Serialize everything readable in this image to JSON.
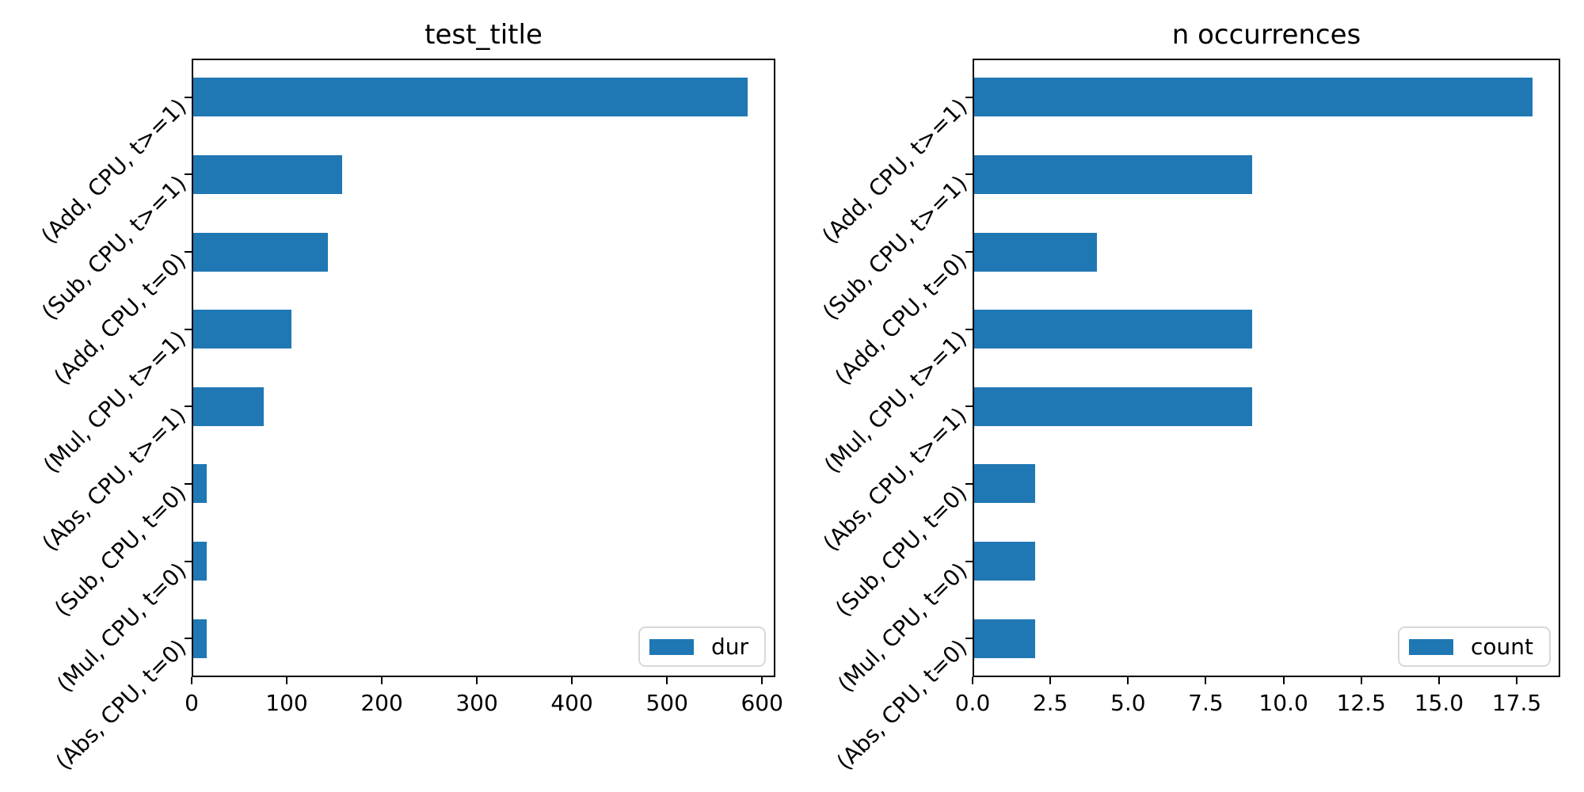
{
  "style": {
    "bar_color": "#1f77b4",
    "background_color": "#ffffff",
    "spine_color": "#000000",
    "text_color": "#000000",
    "legend_border_color": "#d8d8d8"
  },
  "chart_data": [
    {
      "type": "bar",
      "orientation": "horizontal",
      "title": "test_title",
      "legend": [
        "dur"
      ],
      "legend_position": "lower right",
      "grid": false,
      "categories": [
        "(Add, CPU, t>=1)",
        "(Sub, CPU, t>=1)",
        "(Add, CPU, t=0)",
        "(Mul, CPU, t>=1)",
        "(Abs, CPU, t>=1)",
        "(Sub, CPU, t=0)",
        "(Mul, CPU, t=0)",
        "(Abs, CPU, t=0)"
      ],
      "values": [
        585,
        158,
        143,
        105,
        76,
        16,
        16,
        16
      ],
      "xlim": [
        0,
        614
      ],
      "xticks": [
        0,
        100,
        200,
        300,
        400,
        500,
        600
      ],
      "xtick_labels": [
        "0",
        "100",
        "200",
        "300",
        "400",
        "500",
        "600"
      ]
    },
    {
      "type": "bar",
      "orientation": "horizontal",
      "title": "n occurrences",
      "legend": [
        "count"
      ],
      "legend_position": "lower right",
      "grid": false,
      "categories": [
        "(Add, CPU, t>=1)",
        "(Sub, CPU, t>=1)",
        "(Add, CPU, t=0)",
        "(Mul, CPU, t>=1)",
        "(Abs, CPU, t>=1)",
        "(Sub, CPU, t=0)",
        "(Mul, CPU, t=0)",
        "(Abs, CPU, t=0)"
      ],
      "values": [
        18,
        9,
        4,
        9,
        9,
        2,
        2,
        2
      ],
      "xlim": [
        0,
        18.9
      ],
      "xticks": [
        0,
        2.5,
        5,
        7.5,
        10,
        12.5,
        15,
        17.5
      ],
      "xtick_labels": [
        "0.0",
        "2.5",
        "5.0",
        "7.5",
        "10.0",
        "12.5",
        "15.0",
        "17.5"
      ]
    }
  ]
}
